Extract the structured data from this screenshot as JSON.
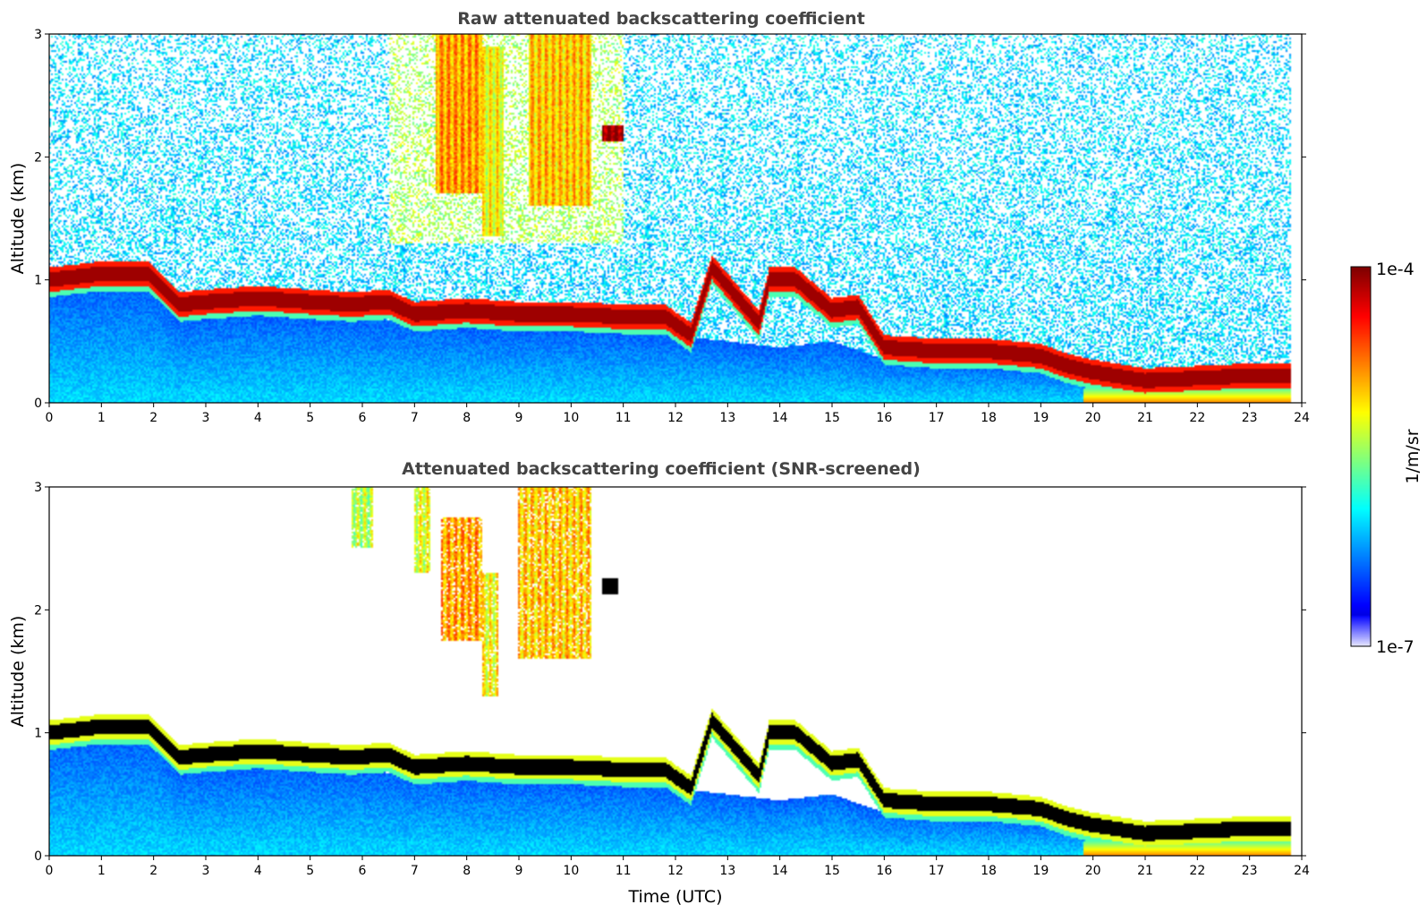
{
  "chart_data": [
    {
      "type": "heatmap",
      "title": "Raw attenuated backscattering coefficient",
      "xlabel": "",
      "ylabel": "Altitude (km)",
      "xlim": [
        0,
        24
      ],
      "ylim": [
        0,
        3
      ],
      "xticks": [
        "0",
        "1",
        "2",
        "3",
        "4",
        "5",
        "6",
        "7",
        "8",
        "9",
        "10",
        "11",
        "12",
        "13",
        "14",
        "15",
        "16",
        "17",
        "18",
        "19",
        "20",
        "21",
        "22",
        "23",
        "24"
      ],
      "yticks": [
        "0",
        "1",
        "2",
        "3"
      ],
      "colorscale": "jet-log",
      "data_end_time": 23.8,
      "layer_height_km": [
        [
          0,
          1.0
        ],
        [
          1,
          1.05
        ],
        [
          1.9,
          1.05
        ],
        [
          2.5,
          0.8
        ],
        [
          3,
          0.82
        ],
        [
          4,
          0.85
        ],
        [
          5,
          0.82
        ],
        [
          5.8,
          0.8
        ],
        [
          6.5,
          0.82
        ],
        [
          7,
          0.72
        ],
        [
          8,
          0.75
        ],
        [
          9,
          0.72
        ],
        [
          10,
          0.72
        ],
        [
          11,
          0.7
        ],
        [
          11.8,
          0.7
        ],
        [
          12.3,
          0.55
        ],
        [
          12.7,
          1.1
        ],
        [
          13.2,
          0.85
        ],
        [
          13.6,
          0.65
        ],
        [
          13.8,
          1.0
        ],
        [
          14.3,
          1.0
        ],
        [
          15,
          0.75
        ],
        [
          15.5,
          0.78
        ],
        [
          16,
          0.45
        ],
        [
          17,
          0.42
        ],
        [
          18,
          0.42
        ],
        [
          19,
          0.38
        ],
        [
          19.5,
          0.3
        ],
        [
          20,
          0.25
        ],
        [
          21,
          0.18
        ],
        [
          22,
          0.2
        ],
        [
          23,
          0.22
        ],
        [
          23.8,
          0.22
        ]
      ],
      "aerosol_top_km": [
        [
          0,
          0.95
        ],
        [
          2,
          0.95
        ],
        [
          2.5,
          0.7
        ],
        [
          4,
          0.72
        ],
        [
          6,
          0.7
        ],
        [
          7,
          0.65
        ],
        [
          9,
          0.6
        ],
        [
          11,
          0.58
        ],
        [
          12,
          0.55
        ],
        [
          13,
          0.5
        ],
        [
          14,
          0.45
        ],
        [
          15,
          0.5
        ],
        [
          16,
          0.35
        ],
        [
          18,
          0.32
        ],
        [
          20,
          0.25
        ],
        [
          21,
          0.15
        ],
        [
          22,
          0.18
        ],
        [
          23.8,
          0.2
        ]
      ],
      "plumes": [
        {
          "t0": 7.4,
          "t1": 8.3,
          "bottom_km": 1.7,
          "top_km": 3.0,
          "level": 0.72
        },
        {
          "t0": 8.3,
          "t1": 8.7,
          "bottom_km": 1.35,
          "top_km": 2.9,
          "level": 0.62
        },
        {
          "t0": 9.2,
          "t1": 10.4,
          "bottom_km": 1.6,
          "top_km": 3.0,
          "level": 0.68
        },
        {
          "t0": 10.6,
          "t1": 11.0,
          "bottom_km": 2.12,
          "top_km": 2.25,
          "level": 0.98
        }
      ],
      "noise_amount": 0.55
    },
    {
      "type": "heatmap",
      "title": "Attenuated backscattering coefficient (SNR-screened)",
      "xlabel": "Time (UTC)",
      "ylabel": "Altitude (km)",
      "xlim": [
        0,
        24
      ],
      "ylim": [
        0,
        3
      ],
      "xticks": [
        "0",
        "1",
        "2",
        "3",
        "4",
        "5",
        "6",
        "7",
        "8",
        "9",
        "10",
        "11",
        "12",
        "13",
        "14",
        "15",
        "16",
        "17",
        "18",
        "19",
        "20",
        "21",
        "22",
        "23",
        "24"
      ],
      "yticks": [
        "0",
        "1",
        "2",
        "3"
      ],
      "colorscale": "jet-log",
      "data_end_time": 23.8,
      "layer_height_km": [
        [
          0,
          1.0
        ],
        [
          1,
          1.05
        ],
        [
          1.9,
          1.05
        ],
        [
          2.5,
          0.8
        ],
        [
          3,
          0.82
        ],
        [
          4,
          0.85
        ],
        [
          5,
          0.82
        ],
        [
          5.8,
          0.8
        ],
        [
          6.5,
          0.82
        ],
        [
          7,
          0.72
        ],
        [
          8,
          0.75
        ],
        [
          9,
          0.72
        ],
        [
          10,
          0.72
        ],
        [
          11,
          0.7
        ],
        [
          11.8,
          0.7
        ],
        [
          12.3,
          0.55
        ],
        [
          12.7,
          1.1
        ],
        [
          13.2,
          0.85
        ],
        [
          13.6,
          0.65
        ],
        [
          13.8,
          1.0
        ],
        [
          14.3,
          1.0
        ],
        [
          15,
          0.75
        ],
        [
          15.5,
          0.78
        ],
        [
          16,
          0.45
        ],
        [
          17,
          0.42
        ],
        [
          18,
          0.42
        ],
        [
          19,
          0.38
        ],
        [
          19.5,
          0.3
        ],
        [
          20,
          0.25
        ],
        [
          21,
          0.18
        ],
        [
          22,
          0.2
        ],
        [
          23,
          0.22
        ],
        [
          23.8,
          0.22
        ]
      ],
      "aerosol_top_km": [
        [
          0,
          0.95
        ],
        [
          2,
          0.95
        ],
        [
          2.5,
          0.7
        ],
        [
          4,
          0.72
        ],
        [
          6,
          0.7
        ],
        [
          7,
          0.65
        ],
        [
          9,
          0.6
        ],
        [
          11,
          0.58
        ],
        [
          12,
          0.55
        ],
        [
          13,
          0.5
        ],
        [
          14,
          0.45
        ],
        [
          15,
          0.5
        ],
        [
          16,
          0.35
        ],
        [
          18,
          0.32
        ],
        [
          20,
          0.25
        ],
        [
          21,
          0.15
        ],
        [
          22,
          0.18
        ],
        [
          23.8,
          0.2
        ]
      ],
      "plumes": [
        {
          "t0": 5.8,
          "t1": 6.2,
          "bottom_km": 2.5,
          "top_km": 3.0,
          "level": 0.55
        },
        {
          "t0": 7.0,
          "t1": 7.3,
          "bottom_km": 2.3,
          "top_km": 3.0,
          "level": 0.6
        },
        {
          "t0": 7.5,
          "t1": 8.3,
          "bottom_km": 1.75,
          "top_km": 2.75,
          "level": 0.72
        },
        {
          "t0": 8.3,
          "t1": 8.6,
          "bottom_km": 1.3,
          "top_km": 2.3,
          "level": 0.62
        },
        {
          "t0": 9.0,
          "t1": 10.4,
          "bottom_km": 1.6,
          "top_km": 3.0,
          "level": 0.68
        },
        {
          "t0": 10.6,
          "t1": 10.9,
          "bottom_km": 2.12,
          "top_km": 2.25,
          "level": 1.0
        }
      ],
      "screened": true,
      "saturated_color": "#000000"
    }
  ],
  "colorbar": {
    "label": "1/m/sr",
    "max_label": "1e-4",
    "min_label": "1e-7"
  }
}
